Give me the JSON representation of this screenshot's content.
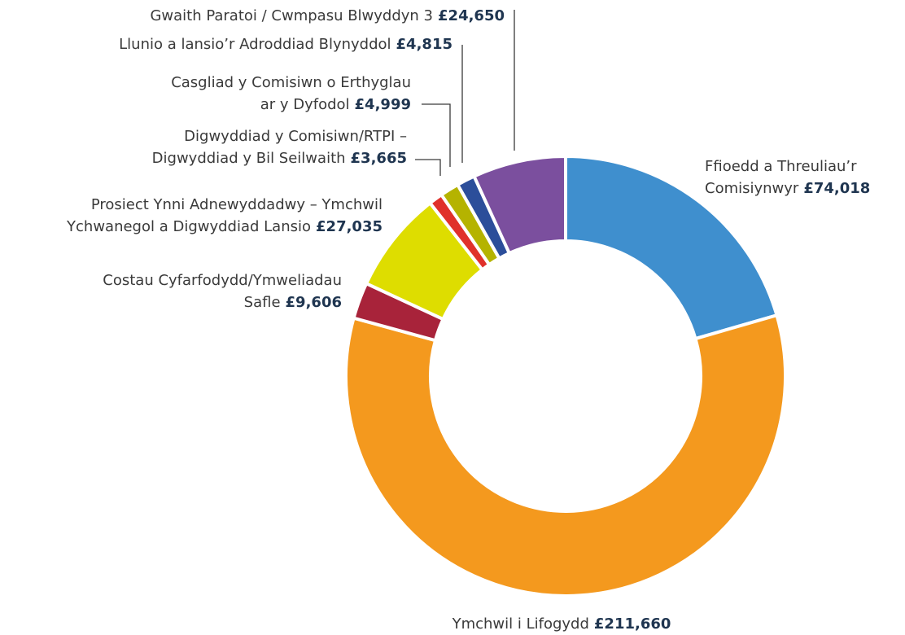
{
  "chart_data": {
    "type": "donut",
    "categories": [
      [
        "Ffioedd a Threuliau’r",
        "Comisiynwyr"
      ],
      [
        "Ymchwil i Lifogydd"
      ],
      [
        "Costau Cyfarfodydd/Ymweliadau",
        "Safle"
      ],
      [
        "Prosiect Ynni Adnewyddadwy – Ymchwil",
        "Ychwanegol a Digwyddiad Lansio"
      ],
      [
        "Digwyddiad y Comisiwn/RTPI –",
        "Digwyddiad y Bil Seilwaith"
      ],
      [
        "Casgliad y Comisiwn o Erthyglau",
        "ar y Dyfodol"
      ],
      [
        "Llunio a lansio’r Adroddiad Blynyddol"
      ],
      [
        "Gwaith Paratoi / Cwmpasu Blwyddyn 3"
      ]
    ],
    "values": [
      74018,
      211660,
      9606,
      27035,
      3665,
      4999,
      4815,
      24650
    ],
    "value_labels": [
      "£74,018",
      "£211,660",
      "£9,606",
      "£27,035",
      "£3,665",
      "£4,999",
      "£4,815",
      "£24,650"
    ],
    "colors": [
      "#3f8fce",
      "#f4991e",
      "#a8233a",
      "#dedd00",
      "#e0312b",
      "#b5b300",
      "#2c4e9a",
      "#7b4f9e"
    ]
  }
}
